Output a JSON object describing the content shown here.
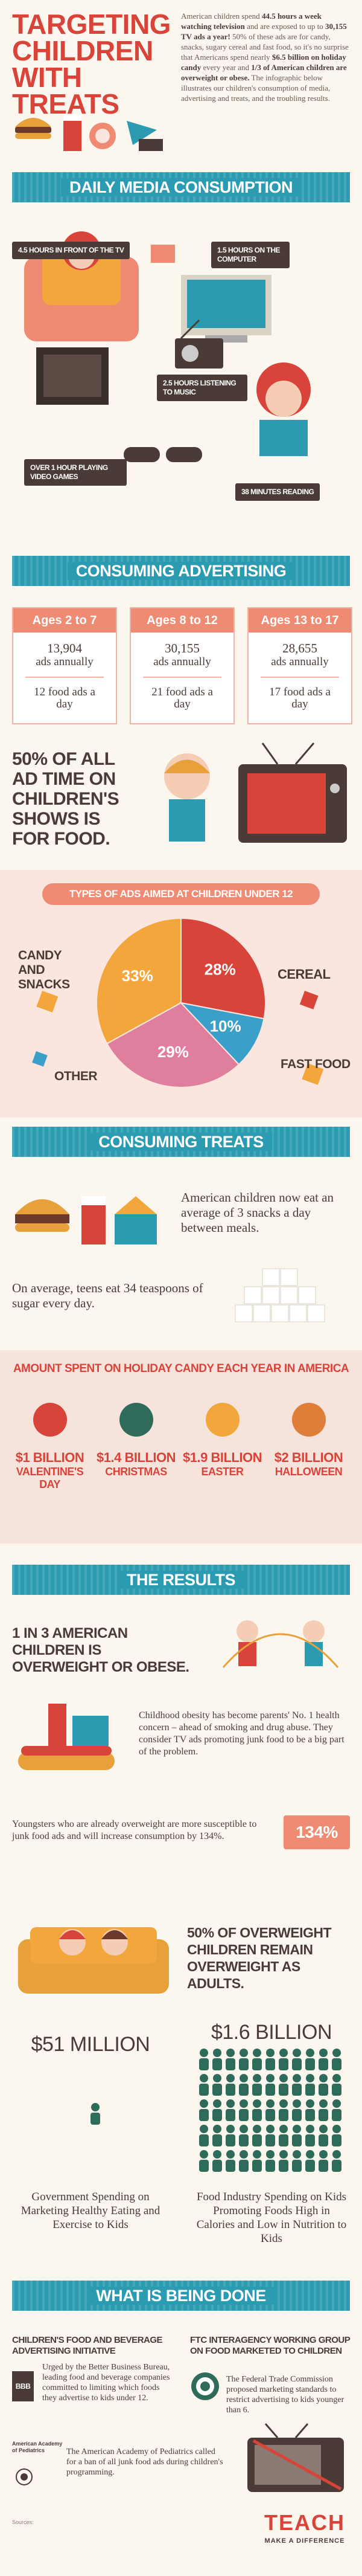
{
  "header": {
    "title": [
      "TARGETING",
      "CHILDREN",
      "WITH TREATS"
    ],
    "intro": [
      "American children spend",
      "44.5 hours a week watching television",
      "and are exposed to up to",
      "30,155 TV ads a year!",
      "50% of these ads are for candy, snacks, sugary cereal and fast food, so it's no surprise that Americans spend nearly",
      "$6.5 billion on holiday candy",
      "every year and",
      "1/3 of American children are overweight or obese.",
      "The infographic below illustrates our children's consumption of media, advertising and treats, and the troubling results."
    ]
  },
  "media": {
    "title": "DAILY MEDIA CONSUMPTION",
    "items": [
      "4.5 HOURS IN FRONT OF THE TV",
      "1.5 HOURS ON THE COMPUTER",
      "2.5 HOURS LISTENING TO MUSIC",
      "OVER 1 HOUR PLAYING VIDEO GAMES",
      "38 MINUTES READING"
    ]
  },
  "advertising": {
    "title": "CONSUMING ADVERTISING",
    "ages": [
      {
        "label": "Ages 2 to 7",
        "annual": "13,904",
        "annual_unit": "ads annually",
        "daily": "12 food ads a day"
      },
      {
        "label": "Ages 8 to 12",
        "annual": "30,155",
        "annual_unit": "ads annually",
        "daily": "21 food ads a day"
      },
      {
        "label": "Ages 13 to 17",
        "annual": "28,655",
        "annual_unit": "ads annually",
        "daily": "17 food ads a day"
      }
    ],
    "statement": "50% OF ALL AD TIME ON CHILDREN'S SHOWS IS FOR FOOD."
  },
  "pie": {
    "type": "pie",
    "title": "TYPES OF ADS AIMED AT CHILDREN UNDER 12",
    "labels": [
      "CANDY AND SNACKS",
      "CEREAL",
      "FAST FOOD",
      "OTHER"
    ],
    "values": [
      33,
      28,
      10,
      29
    ],
    "value_labels": [
      "33%",
      "28%",
      "10%",
      "29%"
    ],
    "colors": [
      "#f2a63b",
      "#d9443a",
      "#3aa0c9",
      "#e07f9d"
    ]
  },
  "treats": {
    "title": "CONSUMING TREATS",
    "snacks": "American children now eat an average of 3 snacks a day between meals.",
    "sugar": "On average, teens eat 34 teaspoons of sugar every day."
  },
  "holiday": {
    "title": "AMOUNT SPENT ON HOLIDAY CANDY EACH YEAR IN AMERICA",
    "items": [
      {
        "amount": "$1 BILLION",
        "day": "VALENTINE'S DAY"
      },
      {
        "amount": "$1.4 BILLION",
        "day": "CHRISTMAS"
      },
      {
        "amount": "$1.9 BILLION",
        "day": "EASTER"
      },
      {
        "amount": "$2 BILLION",
        "day": "HALLOWEEN"
      }
    ]
  },
  "results": {
    "title": "THE RESULTS",
    "obese": "1 IN 3 AMERICAN CHILDREN IS OVERWEIGHT OR OBESE.",
    "concern": "Childhood obesity has become parents' No. 1 health concern – ahead of smoking and drug abuse. They consider TV ads promoting junk food to be a big part of the problem.",
    "susceptible": {
      "text": "Youngsters who are already overweight are more susceptible to junk food ads and will increase consumption by 134%.",
      "badge": "134%"
    },
    "adults": "50% OF OVERWEIGHT CHILDREN REMAIN OVERWEIGHT AS ADULTS.",
    "spending": [
      {
        "amount": "$51 MILLION",
        "text": "Government Spending on Marketing Healthy Eating and Exercise to Kids"
      },
      {
        "amount": "$1.6 BILLION",
        "text": "Food Industry Spending on Kids Promoting Foods High in Calories and Low in Nutrition to Kids"
      }
    ]
  },
  "actions": {
    "title": "WHAT IS BEING DONE",
    "items": [
      {
        "title": "CHILDREN'S FOOD AND BEVERAGE ADVERTISING INITIATIVE",
        "logo": "BBB",
        "text": "Urged by the Better Business Bureau, leading food and beverage companies committed to limiting which foods they advertise to kids under 12."
      },
      {
        "title": "FTC INTERAGENCY WORKING GROUP ON FOOD MARKETED TO CHILDREN",
        "text": "The Federal Trade Commission proposed marketing standards to restrict advertising to kids younger than 6."
      },
      {
        "logo": "American Academy of Pediatrics",
        "text": "The American Academy of Pediatrics called for a ban of all junk food ads during children's programming."
      }
    ]
  },
  "footer": {
    "sources": "Sources:",
    "brand": "TEACH",
    "tagline": "MAKE A DIFFERENCE"
  }
}
